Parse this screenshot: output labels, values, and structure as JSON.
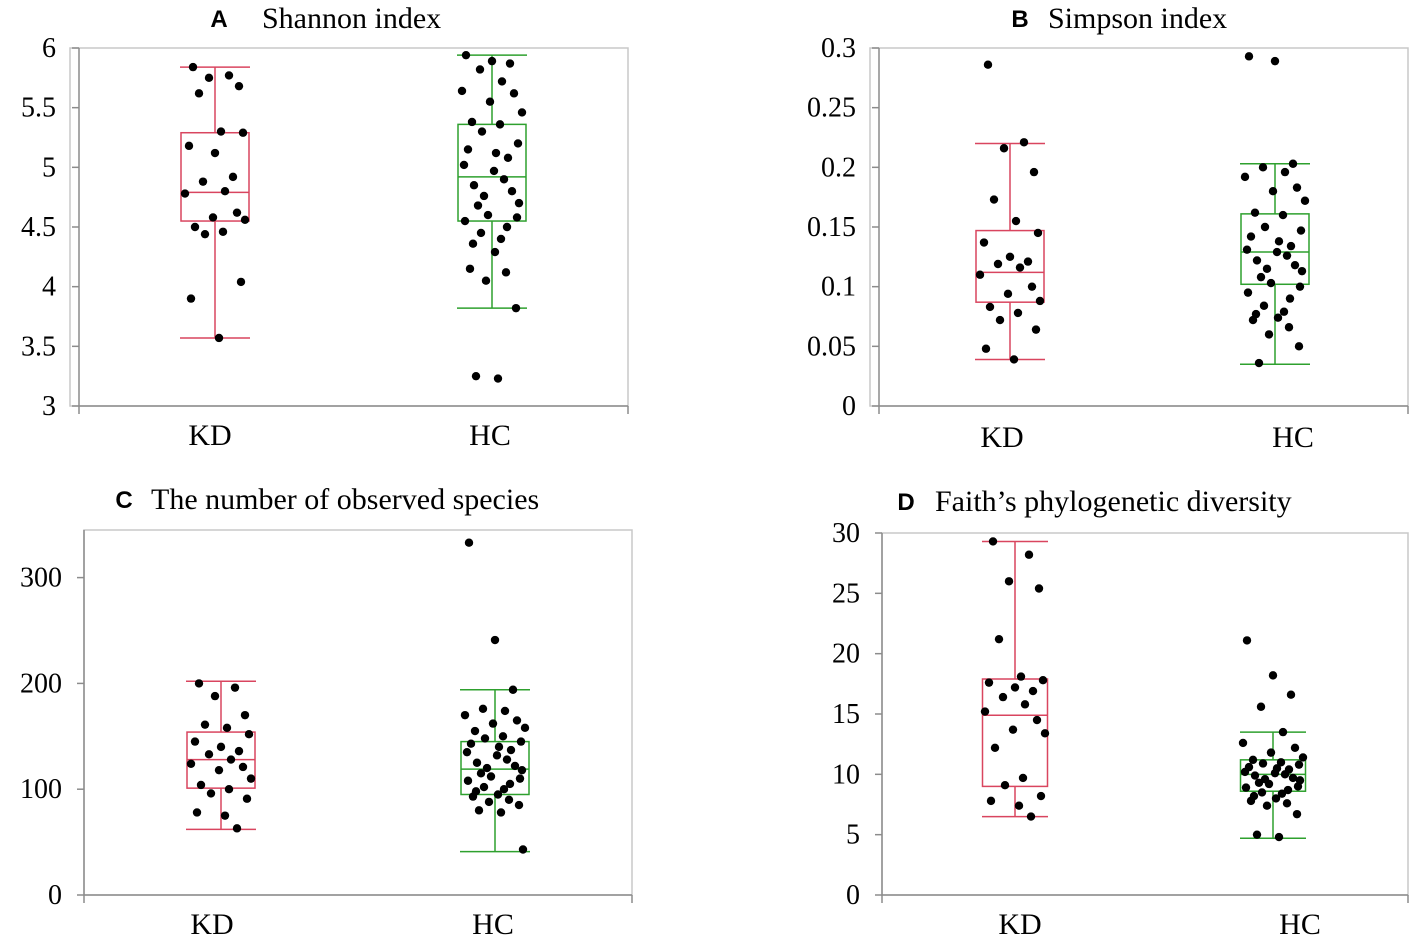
{
  "colors": {
    "kd": "#d9455f",
    "hc": "#2ea02e",
    "point": "#000000",
    "axis": "#8c8c8c",
    "frame": "#c8c8c8"
  },
  "chart_data": [
    {
      "type": "box",
      "panel": "A",
      "title": "Shannon index",
      "categories": [
        "KD",
        "HC"
      ],
      "ylim": [
        3,
        6
      ],
      "yticks": [
        3,
        3.5,
        4,
        4.5,
        5,
        5.5,
        6
      ],
      "ytick_labels": [
        "3",
        "3.5",
        "4",
        "4.5",
        "5",
        "5.5",
        "6"
      ],
      "boxes": [
        {
          "name": "KD",
          "color": "#d9455f",
          "whisker_low": 3.57,
          "q1": 4.55,
          "median": 4.79,
          "q3": 5.29,
          "whisker_high": 5.84
        },
        {
          "name": "HC",
          "color": "#2ea02e",
          "whisker_low": 3.82,
          "q1": 4.55,
          "median": 4.92,
          "q3": 5.36,
          "whisker_high": 5.94
        }
      ],
      "points": [
        [
          5.84,
          5.77,
          5.75,
          5.68,
          5.62,
          5.3,
          5.29,
          5.18,
          5.12,
          4.92,
          4.88,
          4.8,
          4.78,
          4.62,
          4.58,
          4.56,
          4.5,
          4.46,
          4.44,
          4.04,
          3.9,
          3.57
        ],
        [
          5.94,
          5.89,
          5.87,
          5.82,
          5.72,
          5.64,
          5.62,
          5.55,
          5.46,
          5.38,
          5.36,
          5.3,
          5.2,
          5.15,
          5.12,
          5.08,
          5.02,
          4.97,
          4.9,
          4.85,
          4.8,
          4.76,
          4.7,
          4.68,
          4.6,
          4.58,
          4.55,
          4.5,
          4.45,
          4.4,
          4.36,
          4.29,
          4.15,
          4.12,
          4.05,
          3.82,
          3.25,
          3.23
        ]
      ]
    },
    {
      "type": "box",
      "panel": "B",
      "title": "Simpson index",
      "categories": [
        "KD",
        "HC"
      ],
      "ylim": [
        0,
        0.3
      ],
      "yticks": [
        0,
        0.05,
        0.1,
        0.15,
        0.2,
        0.25,
        0.3
      ],
      "ytick_labels": [
        "0",
        "0.05",
        "0.1",
        "0.15",
        "0.2",
        "0.25",
        "0.3"
      ],
      "boxes": [
        {
          "name": "KD",
          "color": "#d9455f",
          "whisker_low": 0.039,
          "q1": 0.087,
          "median": 0.112,
          "q3": 0.147,
          "whisker_high": 0.22
        },
        {
          "name": "HC",
          "color": "#2ea02e",
          "whisker_low": 0.035,
          "q1": 0.102,
          "median": 0.129,
          "q3": 0.161,
          "whisker_high": 0.203
        }
      ],
      "points": [
        [
          0.286,
          0.221,
          0.216,
          0.196,
          0.173,
          0.155,
          0.145,
          0.137,
          0.125,
          0.121,
          0.119,
          0.116,
          0.11,
          0.1,
          0.094,
          0.088,
          0.083,
          0.078,
          0.072,
          0.064,
          0.048,
          0.039
        ],
        [
          0.293,
          0.289,
          0.203,
          0.2,
          0.196,
          0.192,
          0.183,
          0.18,
          0.172,
          0.162,
          0.16,
          0.15,
          0.147,
          0.142,
          0.138,
          0.134,
          0.131,
          0.129,
          0.126,
          0.122,
          0.118,
          0.115,
          0.113,
          0.108,
          0.103,
          0.1,
          0.095,
          0.09,
          0.084,
          0.079,
          0.077,
          0.074,
          0.072,
          0.066,
          0.06,
          0.05,
          0.036
        ]
      ]
    },
    {
      "type": "box",
      "panel": "C",
      "title": "The number of observed species",
      "categories": [
        "KD",
        "HC"
      ],
      "ylim": [
        0,
        345
      ],
      "yticks": [
        0,
        100,
        200,
        300
      ],
      "ytick_labels": [
        "0",
        "100",
        "200",
        "300"
      ],
      "boxes": [
        {
          "name": "KD",
          "color": "#d9455f",
          "whisker_low": 62,
          "q1": 101,
          "median": 128,
          "q3": 154,
          "whisker_high": 202
        },
        {
          "name": "HC",
          "color": "#2ea02e",
          "whisker_low": 41,
          "q1": 95,
          "median": 119,
          "q3": 145,
          "whisker_high": 194
        }
      ],
      "points": [
        [
          200,
          196,
          188,
          170,
          161,
          158,
          152,
          145,
          140,
          136,
          133,
          128,
          124,
          121,
          118,
          110,
          104,
          100,
          96,
          91,
          78,
          75,
          63
        ],
        [
          333,
          241,
          194,
          176,
          174,
          170,
          165,
          162,
          158,
          155,
          150,
          148,
          145,
          143,
          140,
          137,
          135,
          132,
          128,
          125,
          122,
          120,
          118,
          115,
          112,
          110,
          108,
          105,
          102,
          100,
          98,
          95,
          93,
          90,
          88,
          85,
          80,
          78,
          43
        ]
      ]
    },
    {
      "type": "box",
      "panel": "D",
      "title": "Faith’s phylogenetic diversity",
      "categories": [
        "KD",
        "HC"
      ],
      "ylim": [
        0,
        30
      ],
      "yticks": [
        0,
        5,
        10,
        15,
        20,
        25,
        30
      ],
      "ytick_labels": [
        "0",
        "5",
        "10",
        "15",
        "20",
        "25",
        "30"
      ],
      "boxes": [
        {
          "name": "KD",
          "color": "#d9455f",
          "whisker_low": 6.5,
          "q1": 9.0,
          "median": 14.9,
          "q3": 17.9,
          "whisker_high": 29.3
        },
        {
          "name": "HC",
          "color": "#2ea02e",
          "whisker_low": 4.7,
          "q1": 8.6,
          "median": 10.0,
          "q3": 11.2,
          "whisker_high": 13.5
        }
      ],
      "points": [
        [
          29.3,
          28.2,
          26.0,
          25.4,
          21.2,
          18.1,
          17.8,
          17.6,
          17.2,
          16.9,
          16.4,
          15.8,
          15.2,
          14.5,
          13.7,
          13.4,
          12.2,
          9.7,
          9.1,
          8.2,
          7.8,
          7.4,
          6.5
        ],
        [
          21.1,
          18.2,
          16.6,
          15.6,
          13.5,
          12.6,
          12.2,
          11.8,
          11.4,
          11.2,
          11.0,
          10.9,
          10.8,
          10.6,
          10.5,
          10.4,
          10.2,
          10.1,
          10.0,
          9.9,
          9.7,
          9.6,
          9.5,
          9.3,
          9.2,
          9.0,
          8.9,
          8.7,
          8.5,
          8.4,
          8.2,
          8.0,
          7.8,
          7.6,
          7.4,
          6.7,
          5.0,
          4.8
        ]
      ]
    }
  ]
}
